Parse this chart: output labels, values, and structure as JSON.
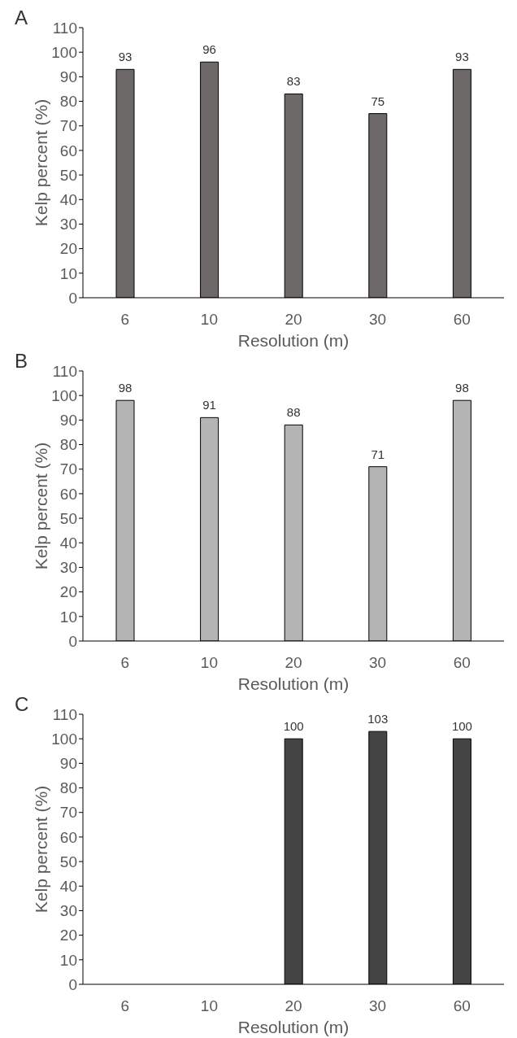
{
  "chart_data": [
    {
      "type": "bar",
      "title": "A",
      "xlabel": "Resolution (m)",
      "ylabel": "Kelp percent (%)",
      "categories": [
        "6",
        "10",
        "20",
        "30",
        "60"
      ],
      "values": [
        93,
        96,
        83,
        75,
        93
      ],
      "color": "#6e6969",
      "ylim": [
        0,
        110
      ],
      "yticks": [
        0,
        10,
        20,
        30,
        40,
        50,
        60,
        70,
        80,
        90,
        100,
        110
      ],
      "data_labels": true
    },
    {
      "type": "bar",
      "title": "B",
      "xlabel": "Resolution (m)",
      "ylabel": "Kelp percent (%)",
      "categories": [
        "6",
        "10",
        "20",
        "30",
        "60"
      ],
      "values": [
        98,
        91,
        88,
        71,
        98
      ],
      "color": "#b4b4b4",
      "ylim": [
        0,
        110
      ],
      "yticks": [
        0,
        10,
        20,
        30,
        40,
        50,
        60,
        70,
        80,
        90,
        100,
        110
      ],
      "data_labels": true
    },
    {
      "type": "bar",
      "title": "C",
      "xlabel": "Resolution (m)",
      "ylabel": "Kelp percent (%)",
      "categories": [
        "6",
        "10",
        "20",
        "30",
        "60"
      ],
      "values": [
        null,
        null,
        100,
        103,
        100
      ],
      "color": "#444444",
      "ylim": [
        0,
        110
      ],
      "yticks": [
        0,
        10,
        20,
        30,
        40,
        50,
        60,
        70,
        80,
        90,
        100,
        110
      ],
      "data_labels": true
    }
  ]
}
